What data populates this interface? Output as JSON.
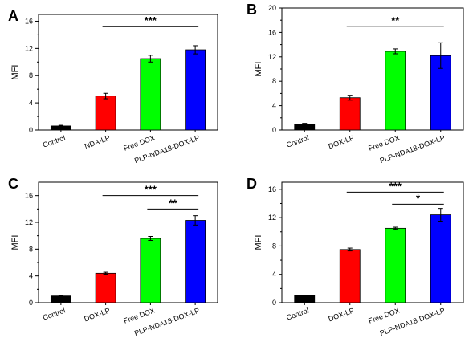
{
  "chart_data": [
    {
      "panel": "A",
      "type": "bar",
      "categories": [
        "Control",
        "NDA-LP",
        "Free DOX",
        "PLP-NDA18-DOX-LP"
      ],
      "values": [
        0.6,
        5.0,
        10.5,
        11.8
      ],
      "errors": [
        0.1,
        0.4,
        0.5,
        0.6
      ],
      "colors": [
        "#000000",
        "#ff0000",
        "#00ff00",
        "#0000ff"
      ],
      "ylabel": "MFI",
      "ylim": [
        0,
        17
      ],
      "yticks": [
        "0",
        "4",
        "8",
        "12",
        "16"
      ],
      "significance": [
        {
          "from": 1,
          "to": 3,
          "label": "***",
          "y": 15.2
        }
      ]
    },
    {
      "panel": "B",
      "type": "bar",
      "categories": [
        "Control",
        "DOX-LP",
        "Free DOX",
        "PLP-NDA18-DOX-LP"
      ],
      "values": [
        1.0,
        5.3,
        12.9,
        12.2
      ],
      "errors": [
        0.1,
        0.4,
        0.4,
        2.1
      ],
      "colors": [
        "#000000",
        "#ff0000",
        "#00ff00",
        "#0000ff"
      ],
      "ylabel": "MFI",
      "ylim": [
        0,
        20
      ],
      "yticks": [
        "0",
        "4",
        "8",
        "12",
        "16",
        "20"
      ],
      "significance": [
        {
          "from": 1,
          "to": 3,
          "label": "**",
          "y": 17.0
        }
      ]
    },
    {
      "panel": "C",
      "type": "bar",
      "categories": [
        "Control",
        "DOX-LP",
        "Free DOX",
        "PLP-NDA18-DOX-LP"
      ],
      "values": [
        1.0,
        4.4,
        9.6,
        12.3
      ],
      "errors": [
        0.05,
        0.15,
        0.3,
        0.7
      ],
      "colors": [
        "#000000",
        "#ff0000",
        "#00ff00",
        "#0000ff"
      ],
      "ylabel": "MFI",
      "ylim": [
        0,
        18
      ],
      "yticks": [
        "0",
        "4",
        "8",
        "12",
        "16"
      ],
      "significance": [
        {
          "from": 1,
          "to": 3,
          "label": "***",
          "y": 16.0
        },
        {
          "from": 2,
          "to": 3,
          "label": "**",
          "y": 14.0
        }
      ]
    },
    {
      "panel": "D",
      "type": "bar",
      "categories": [
        "Control",
        "DOX-LP",
        "Free DOX",
        "PLP-NDA18-DOX-LP"
      ],
      "values": [
        1.0,
        7.5,
        10.5,
        12.4
      ],
      "errors": [
        0.05,
        0.2,
        0.15,
        0.9
      ],
      "colors": [
        "#000000",
        "#ff0000",
        "#00ff00",
        "#0000ff"
      ],
      "ylabel": "MFI",
      "ylim": [
        0,
        17
      ],
      "yticks": [
        "0",
        "4",
        "8",
        "12",
        "16"
      ],
      "significance": [
        {
          "from": 1,
          "to": 3,
          "label": "***",
          "y": 15.6
        },
        {
          "from": 2,
          "to": 3,
          "label": "*",
          "y": 13.9
        }
      ]
    }
  ]
}
